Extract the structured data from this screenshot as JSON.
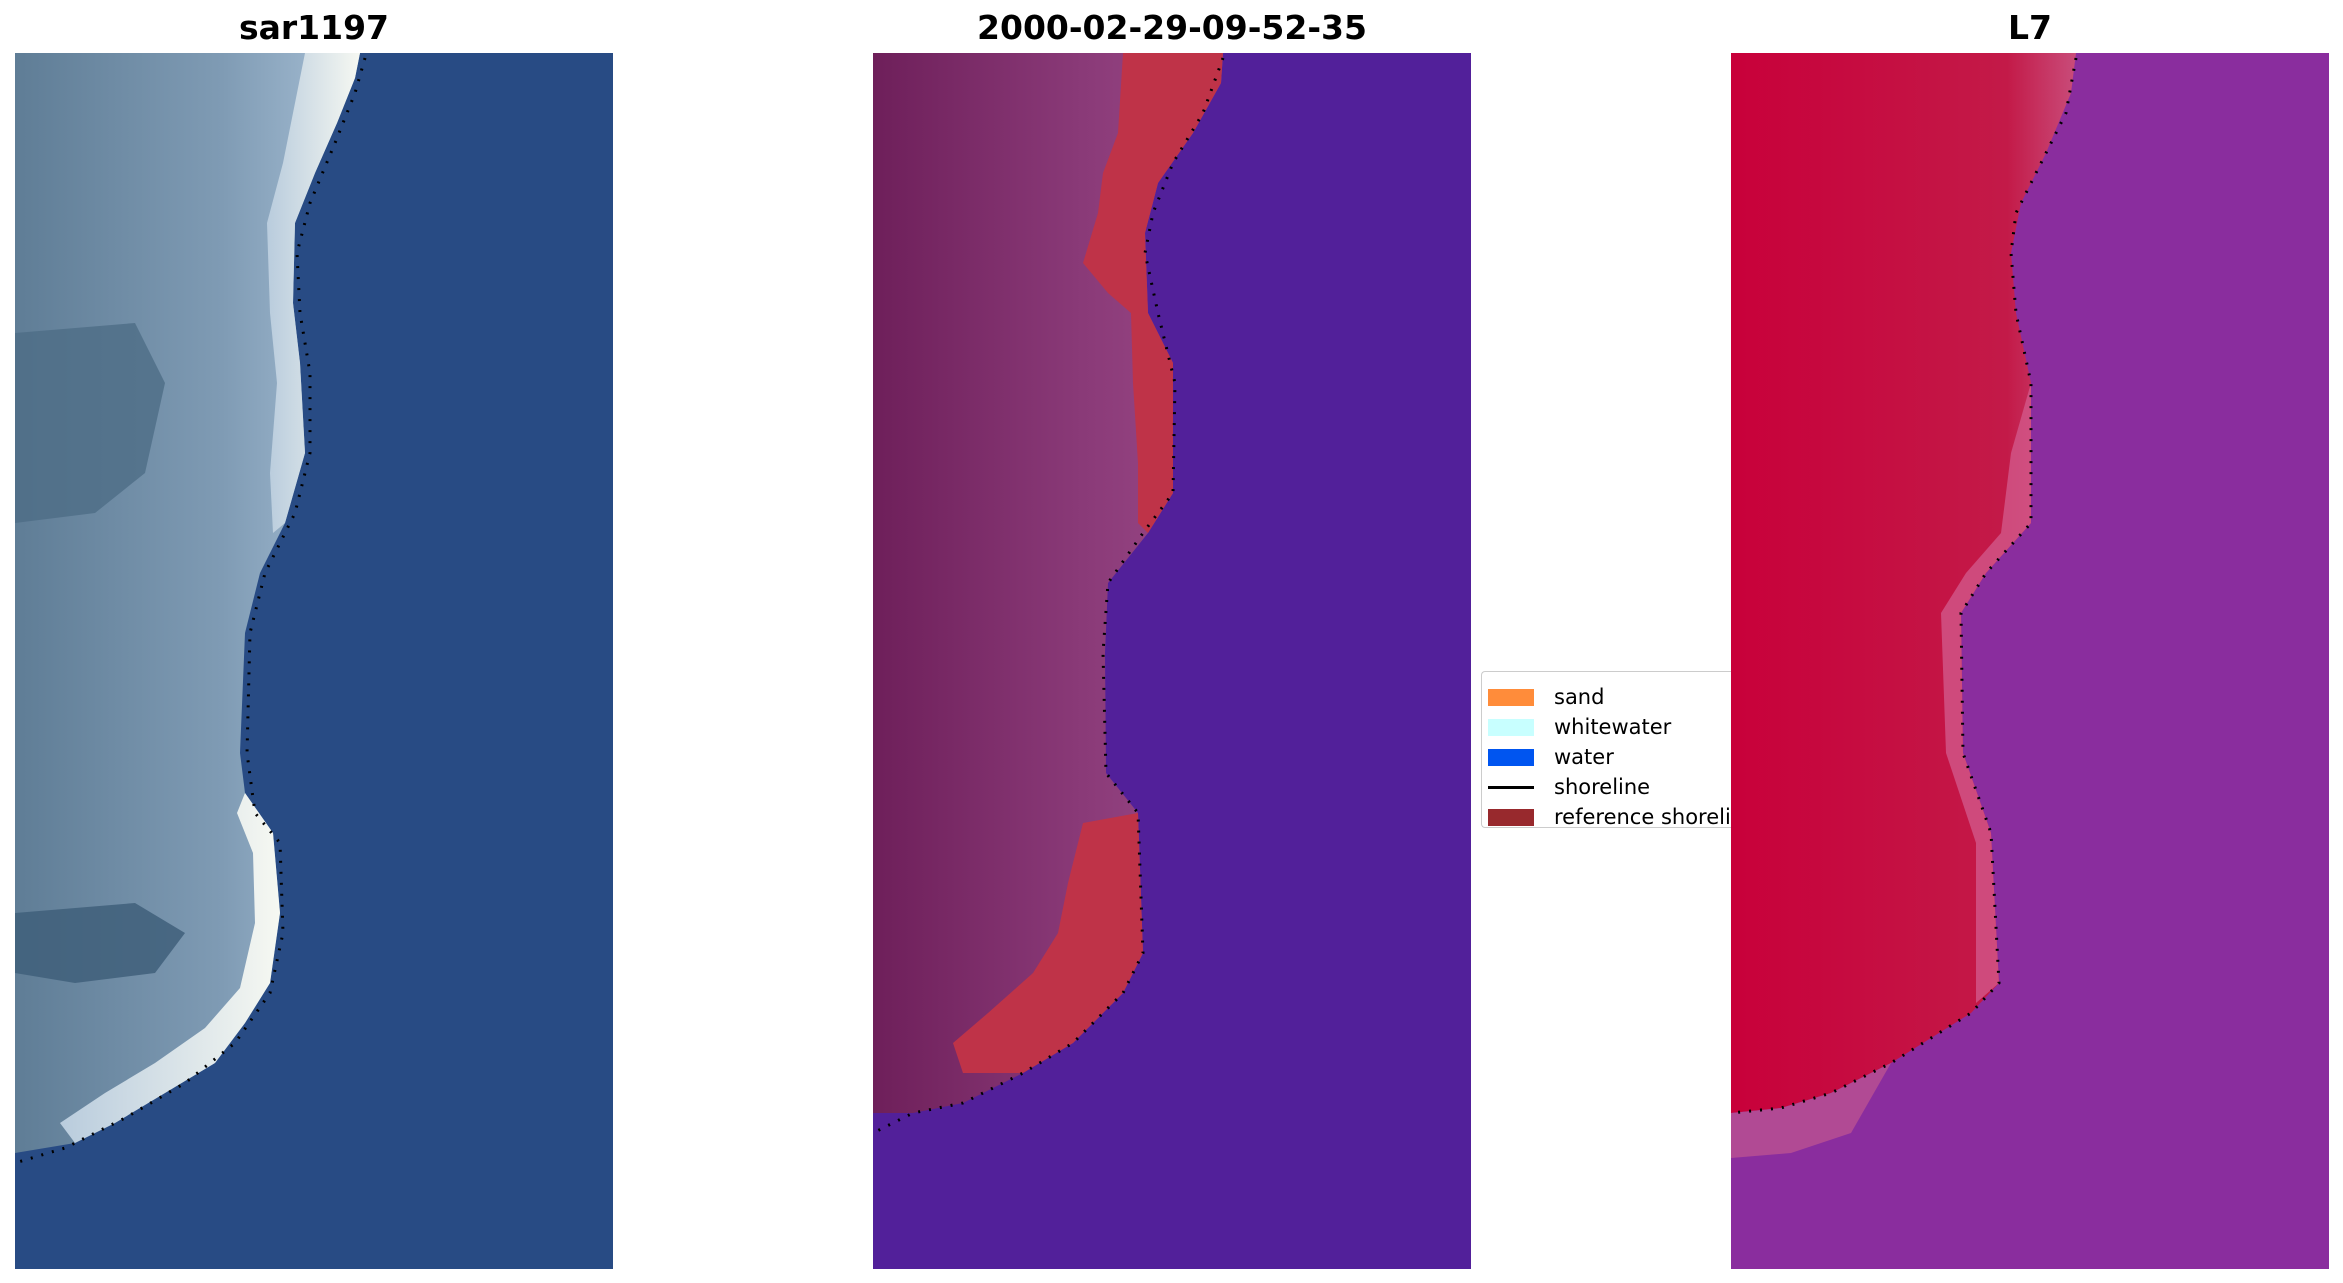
{
  "panels": [
    {
      "title": "sar1197"
    },
    {
      "title": "2000-02-29-09-52-35"
    },
    {
      "title": "L7"
    }
  ],
  "legend": {
    "items": [
      {
        "label": "sand",
        "color": "#ff8c3a"
      },
      {
        "label": "whitewater",
        "color": "#c8ffff"
      },
      {
        "label": "water",
        "color": "#0055f0"
      },
      {
        "label": "shoreline",
        "color": "#000000"
      },
      {
        "label": "reference shoreline",
        "color": "#98292d"
      }
    ]
  },
  "colors": {
    "rgb_water": "#284b84",
    "rgb_land": "#6e8aa4",
    "rgb_surf": "#dfe8f0",
    "class_water": "#52209a",
    "class_land": "#7f2e70",
    "class_sand": "#bf3348",
    "mndwi_land": "#c8103b",
    "mndwi_water": "#8a2d9e",
    "shoreline_dots": "#000000"
  }
}
